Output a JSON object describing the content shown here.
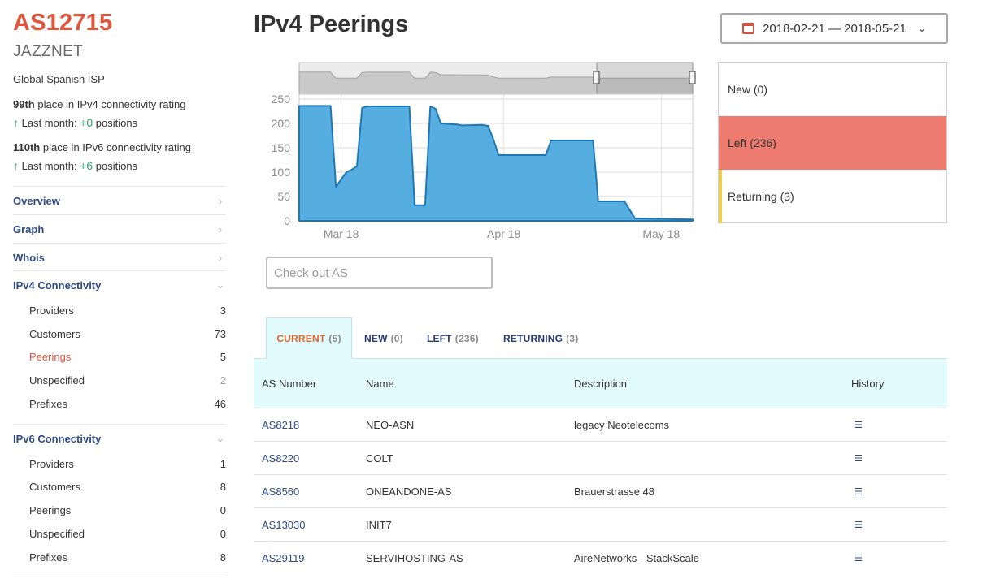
{
  "sidebar": {
    "as_number": "AS12715",
    "as_name": "JAZZNET",
    "description": "Global Spanish ISP",
    "ipv4_rating": {
      "place": "99th",
      "text": " place in IPv4 connectivity rating",
      "last_month_label": "Last month: ",
      "delta": "+0",
      "suffix": " positions"
    },
    "ipv6_rating": {
      "place": "110th",
      "text": " place in IPv6 connectivity rating",
      "last_month_label": "Last month: ",
      "delta": "+6",
      "suffix": " positions"
    },
    "nav": [
      {
        "label": "Overview"
      },
      {
        "label": "Graph"
      },
      {
        "label": "Whois"
      },
      {
        "label": "IPv4 Connectivity"
      },
      {
        "label": "IPv6 Connectivity"
      }
    ],
    "ipv4_items": [
      {
        "label": "Providers",
        "count": "3"
      },
      {
        "label": "Customers",
        "count": "73"
      },
      {
        "label": "Peerings",
        "count": "5"
      },
      {
        "label": "Unspecified",
        "count": "2"
      },
      {
        "label": "Prefixes",
        "count": "46"
      }
    ],
    "ipv6_items": [
      {
        "label": "Providers",
        "count": "1"
      },
      {
        "label": "Customers",
        "count": "8"
      },
      {
        "label": "Peerings",
        "count": "0"
      },
      {
        "label": "Unspecified",
        "count": "0"
      },
      {
        "label": "Prefixes",
        "count": "8"
      }
    ]
  },
  "header": {
    "title": "IPv4 Peerings",
    "date_range": "2018-02-21 — 2018-05-21"
  },
  "legend": {
    "new": "New (0)",
    "left": "Left (236)",
    "returning": "Returning (3)"
  },
  "search": {
    "placeholder": "Check out AS"
  },
  "tabs": [
    {
      "label": "CURRENT",
      "count": "(5)"
    },
    {
      "label": "NEW",
      "count": "(0)"
    },
    {
      "label": "LEFT",
      "count": "(236)"
    },
    {
      "label": "RETURNING",
      "count": "(3)"
    }
  ],
  "table": {
    "headers": [
      "AS Number",
      "Name",
      "Description",
      "History"
    ],
    "rows": [
      {
        "asn": "AS8218",
        "name": "NEO-ASN",
        "description": "legacy Neotelecoms"
      },
      {
        "asn": "AS8220",
        "name": "COLT",
        "description": ""
      },
      {
        "asn": "AS8560",
        "name": "ONEANDONE-AS",
        "description": "Brauerstrasse 48"
      },
      {
        "asn": "AS13030",
        "name": "INIT7",
        "description": ""
      },
      {
        "asn": "AS29119",
        "name": "SERVIHOSTING-AS",
        "description": "AireNetworks - StackScale"
      }
    ]
  },
  "colors": {
    "accent": "#e0553c",
    "link": "#2f4b85",
    "positive": "#2aa76a",
    "area_fill": "#56ade0",
    "area_line": "#1f78b4",
    "left_highlight": "#ee7b70",
    "returning_marker": "#f2cf4a"
  },
  "chart_data": {
    "type": "area",
    "x_ticks": [
      "Mar 18",
      "Apr 18",
      "May 18"
    ],
    "y_ticks": [
      "0",
      "50",
      "100",
      "150",
      "200",
      "250"
    ],
    "ylim": [
      0,
      260
    ],
    "xlim": [
      "2018-03-10",
      "2018-05-24"
    ],
    "grid": true,
    "series": [
      {
        "points": [
          [
            "2018-03-10",
            236
          ],
          [
            "2018-03-16",
            236
          ],
          [
            "2018-03-16",
            232
          ],
          [
            "2018-03-17",
            70
          ],
          [
            "2018-03-18",
            85
          ],
          [
            "2018-03-19",
            100
          ],
          [
            "2018-03-20",
            105
          ],
          [
            "2018-03-21",
            112
          ],
          [
            "2018-03-22",
            232
          ],
          [
            "2018-03-23",
            235
          ],
          [
            "2018-03-31",
            235
          ],
          [
            "2018-04-01",
            32
          ],
          [
            "2018-04-03",
            32
          ],
          [
            "2018-04-04",
            235
          ],
          [
            "2018-04-05",
            230
          ],
          [
            "2018-04-06",
            200
          ],
          [
            "2018-04-09",
            198
          ],
          [
            "2018-04-10",
            196
          ],
          [
            "2018-04-14",
            197
          ],
          [
            "2018-04-15",
            195
          ],
          [
            "2018-04-16",
            168
          ],
          [
            "2018-04-17",
            135
          ],
          [
            "2018-04-26",
            135
          ],
          [
            "2018-04-27",
            165
          ],
          [
            "2018-05-05",
            165
          ],
          [
            "2018-05-06",
            40
          ],
          [
            "2018-05-11",
            40
          ],
          [
            "2018-05-13",
            5
          ],
          [
            "2018-05-24",
            3
          ]
        ]
      }
    ],
    "navigator": {
      "selection": [
        "2018-03-10",
        "2018-05-24"
      ]
    }
  }
}
